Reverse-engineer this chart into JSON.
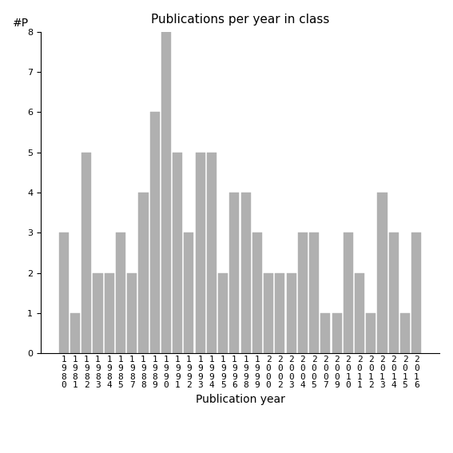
{
  "categories": [
    "1980",
    "1981",
    "1982",
    "1983",
    "1984",
    "1985",
    "1987",
    "1988",
    "1989",
    "1990",
    "1991",
    "1992",
    "1993",
    "1994",
    "1995",
    "1996",
    "1998",
    "1999",
    "2000",
    "2002",
    "2003",
    "2004",
    "2005",
    "2007",
    "2009",
    "2010",
    "2011",
    "2012",
    "2013",
    "2014",
    "2015",
    "2016"
  ],
  "values": [
    3,
    1,
    5,
    2,
    2,
    3,
    2,
    4,
    6,
    8,
    5,
    3,
    5,
    5,
    2,
    4,
    4,
    3,
    2,
    2,
    2,
    3,
    3,
    1,
    1,
    3,
    2,
    1,
    4,
    3,
    1,
    3
  ],
  "bar_color": "#b0b0b0",
  "bar_edgecolor": "#b0b0b0",
  "title": "Publications per year in class",
  "xlabel": "Publication year",
  "ylabel": "#P",
  "ylim": [
    0,
    8
  ],
  "yticks": [
    0,
    1,
    2,
    3,
    4,
    5,
    6,
    7,
    8
  ],
  "title_fontsize": 11,
  "label_fontsize": 10,
  "tick_fontsize": 8,
  "background_color": "#ffffff"
}
